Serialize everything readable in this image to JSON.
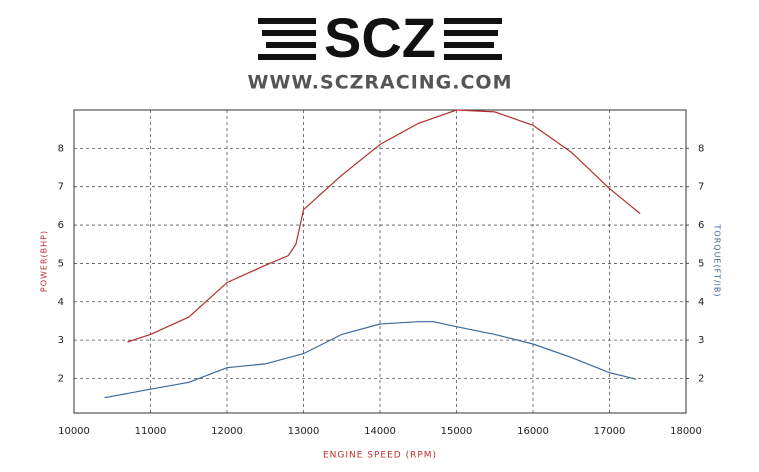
{
  "header": {
    "logo": "SCZ",
    "url": "WWW.SCZRACING.COM"
  },
  "chart_data": {
    "type": "line",
    "xlabel": "ENGINE SPEED (RPM)",
    "ylabel": "POWER(BHP)",
    "y2label": "TORQUE(FT/lB)",
    "xlim": [
      10000,
      18000
    ],
    "xticks": [
      10000,
      11000,
      12000,
      13000,
      14000,
      15000,
      16000,
      17000,
      18000
    ],
    "ylim": [
      1.1,
      9.0
    ],
    "yticks": [
      2,
      3,
      4,
      5,
      6,
      7,
      8
    ],
    "y2lim": [
      1.1,
      9.0
    ],
    "y2ticks": [
      2,
      3,
      4,
      5,
      6,
      7,
      8
    ],
    "grid": true,
    "series": [
      {
        "name": "POWER(BHP)",
        "color": "#b03030",
        "x": [
          10700,
          11000,
          11500,
          12000,
          12500,
          12800,
          12900,
          13000,
          13500,
          14000,
          14500,
          15000,
          15500,
          16000,
          16500,
          17000,
          17400
        ],
        "values": [
          2.95,
          3.15,
          3.6,
          4.5,
          4.95,
          5.2,
          5.5,
          6.4,
          7.3,
          8.1,
          8.65,
          9.0,
          8.95,
          8.6,
          7.9,
          6.95,
          6.3
        ]
      },
      {
        "name": "TORQUE(FT/lB)",
        "color": "#3a6a9a",
        "axis": "y2",
        "x": [
          10400,
          11000,
          11500,
          12000,
          12500,
          13000,
          13500,
          14000,
          14500,
          14700,
          15000,
          15500,
          16000,
          16500,
          17000,
          17350
        ],
        "values": [
          1.5,
          1.72,
          1.9,
          2.28,
          2.38,
          2.65,
          3.15,
          3.42,
          3.48,
          3.48,
          3.35,
          3.15,
          2.9,
          2.55,
          2.15,
          1.98
        ]
      }
    ]
  }
}
